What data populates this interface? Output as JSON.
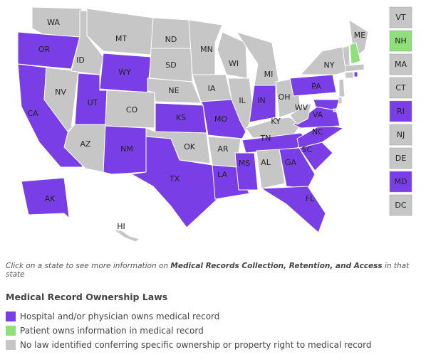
{
  "map": {
    "states": [
      {
        "abbr": "WA",
        "color": "#c6c6c6"
      },
      {
        "abbr": "OR",
        "color": "#7a3ee6"
      },
      {
        "abbr": "CA",
        "color": "#7a3ee6"
      },
      {
        "abbr": "NV",
        "color": "#c6c6c6"
      },
      {
        "abbr": "ID",
        "color": "#c6c6c6"
      },
      {
        "abbr": "MT",
        "color": "#c6c6c6"
      },
      {
        "abbr": "WY",
        "color": "#7a3ee6"
      },
      {
        "abbr": "UT",
        "color": "#7a3ee6"
      },
      {
        "abbr": "AZ",
        "color": "#c6c6c6"
      },
      {
        "abbr": "CO",
        "color": "#c6c6c6"
      },
      {
        "abbr": "NM",
        "color": "#7a3ee6"
      },
      {
        "abbr": "ND",
        "color": "#c6c6c6"
      },
      {
        "abbr": "SD",
        "color": "#c6c6c6"
      },
      {
        "abbr": "NE",
        "color": "#c6c6c6"
      },
      {
        "abbr": "KS",
        "color": "#7a3ee6"
      },
      {
        "abbr": "OK",
        "color": "#c6c6c6"
      },
      {
        "abbr": "TX",
        "color": "#7a3ee6"
      },
      {
        "abbr": "MN",
        "color": "#c6c6c6"
      },
      {
        "abbr": "IA",
        "color": "#c6c6c6"
      },
      {
        "abbr": "MO",
        "color": "#7a3ee6"
      },
      {
        "abbr": "AR",
        "color": "#c6c6c6"
      },
      {
        "abbr": "LA",
        "color": "#7a3ee6"
      },
      {
        "abbr": "WI",
        "color": "#c6c6c6"
      },
      {
        "abbr": "IL",
        "color": "#c6c6c6"
      },
      {
        "abbr": "MI",
        "color": "#c6c6c6"
      },
      {
        "abbr": "IN",
        "color": "#7a3ee6"
      },
      {
        "abbr": "OH",
        "color": "#c6c6c6"
      },
      {
        "abbr": "KY",
        "color": "#c6c6c6"
      },
      {
        "abbr": "TN",
        "color": "#7a3ee6"
      },
      {
        "abbr": "MS",
        "color": "#7a3ee6"
      },
      {
        "abbr": "AL",
        "color": "#c6c6c6"
      },
      {
        "abbr": "GA",
        "color": "#7a3ee6"
      },
      {
        "abbr": "FL",
        "color": "#7a3ee6"
      },
      {
        "abbr": "SC",
        "color": "#7a3ee6"
      },
      {
        "abbr": "NC",
        "color": "#7a3ee6"
      },
      {
        "abbr": "VA",
        "color": "#7a3ee6"
      },
      {
        "abbr": "WV",
        "color": "#c6c6c6"
      },
      {
        "abbr": "PA",
        "color": "#7a3ee6"
      },
      {
        "abbr": "NY",
        "color": "#c6c6c6"
      },
      {
        "abbr": "ME",
        "color": "#c6c6c6"
      },
      {
        "abbr": "AK",
        "color": "#7a3ee6"
      },
      {
        "abbr": "HI",
        "color": "#c6c6c6"
      }
    ],
    "small_states": [
      {
        "abbr": "VT",
        "color": "#c6c6c6"
      },
      {
        "abbr": "NH",
        "color": "#8fe07a"
      },
      {
        "abbr": "MA",
        "color": "#c6c6c6"
      },
      {
        "abbr": "CT",
        "color": "#c6c6c6"
      },
      {
        "abbr": "RI",
        "color": "#7a3ee6"
      },
      {
        "abbr": "NJ",
        "color": "#c6c6c6"
      },
      {
        "abbr": "DE",
        "color": "#c6c6c6"
      },
      {
        "abbr": "MD",
        "color": "#7a3ee6"
      },
      {
        "abbr": "DC",
        "color": "#c6c6c6"
      }
    ]
  },
  "note": {
    "before": "Click on a state to see more information on ",
    "emphasis": "Medical Records Collection, Retention, and Access",
    "after": " in that state"
  },
  "legend": {
    "title": "Medical Record Ownership Laws",
    "items": [
      {
        "label": "Hospital and/or physician owns medical record",
        "color": "#7a3ee6"
      },
      {
        "label": "Patient owns information in medical record",
        "color": "#8fe07a"
      },
      {
        "label": "No law identified conferring specific ownership or property right to medical record",
        "color": "#c6c6c6"
      }
    ]
  }
}
